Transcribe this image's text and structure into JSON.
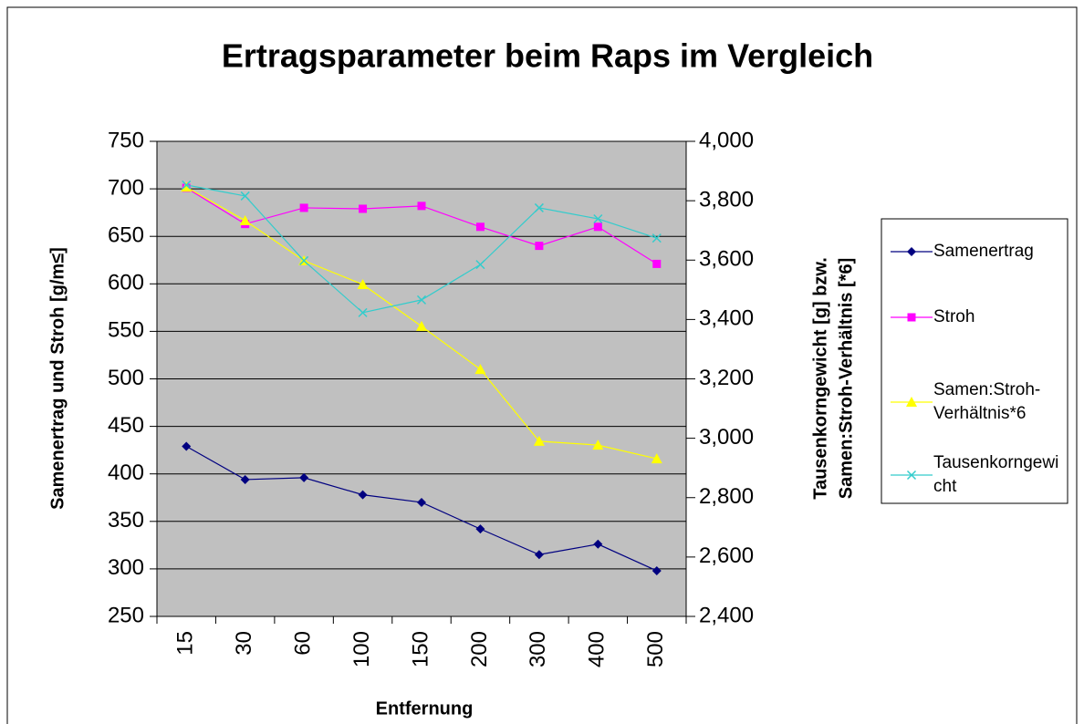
{
  "chart_data": {
    "type": "line",
    "title": "Ertragsparameter beim Raps im Vergleich",
    "xlabel": "Entfernung",
    "ylabel": "Samenertrag und Stroh [g/m≤]",
    "y2label": [
      "Tausenkorngewicht [g] bzw.",
      "Samen:Stroh-Verhältnis [*6]"
    ],
    "categories": [
      "15",
      "30",
      "60",
      "100",
      "150",
      "200",
      "300",
      "400",
      "500"
    ],
    "ylim": [
      250,
      750
    ],
    "yticks": [
      250,
      300,
      350,
      400,
      450,
      500,
      550,
      600,
      650,
      700,
      750
    ],
    "y2lim": [
      2400,
      4000
    ],
    "y2ticks": [
      {
        "value": 2400,
        "label": "2,400"
      },
      {
        "value": 2600,
        "label": "2,600"
      },
      {
        "value": 2800,
        "label": "2,800"
      },
      {
        "value": 3000,
        "label": "3,000"
      },
      {
        "value": 3200,
        "label": "3,200"
      },
      {
        "value": 3400,
        "label": "3,400"
      },
      {
        "value": 3600,
        "label": "3,600"
      },
      {
        "value": 3800,
        "label": "3,800"
      },
      {
        "value": 4000,
        "label": "4,000"
      }
    ],
    "grid": true,
    "legend": "right",
    "series": [
      {
        "name": "Samenertrag",
        "color": "#000080",
        "marker": "diamond",
        "values": [
          429,
          394,
          396,
          378,
          370,
          342,
          315,
          326,
          298
        ]
      },
      {
        "name": "Stroh",
        "color": "#ff00ff",
        "marker": "square",
        "values": [
          701,
          663,
          680,
          679,
          682,
          660,
          640,
          660,
          621
        ]
      },
      {
        "name": "Samen:Stroh-Verhältnis*6",
        "color": "#ffff00",
        "marker": "triangle",
        "axis": "y2",
        "values": [
          3846,
          3733,
          3598,
          3518,
          3377,
          3232,
          2990,
          2977,
          2931
        ]
      },
      {
        "name": "Tausenkorngewicht",
        "color": "#33cccc",
        "marker": "x",
        "axis": "y2",
        "values": [
          3853,
          3816,
          3598,
          3423,
          3466,
          3585,
          3776,
          3739,
          3674
        ]
      }
    ]
  }
}
